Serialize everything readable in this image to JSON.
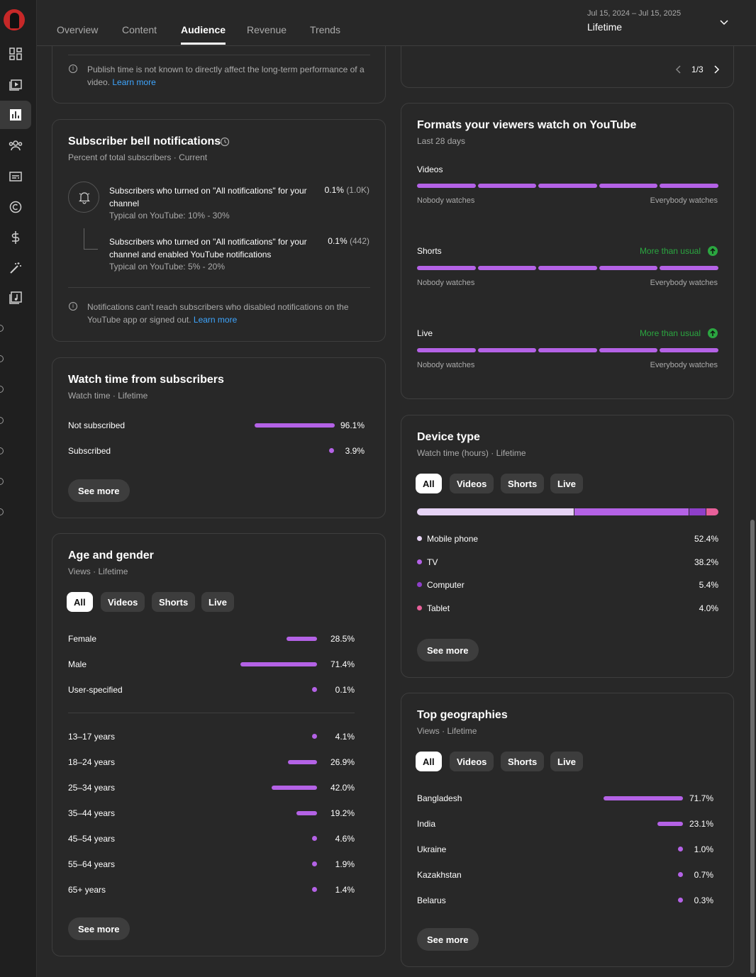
{
  "tabs": [
    "Overview",
    "Content",
    "Audience",
    "Revenue",
    "Trends"
  ],
  "date": {
    "range": "Jul 15, 2024 – Jul 15, 2025",
    "label": "Lifetime"
  },
  "publish_note": {
    "text": "Publish time is not known to directly affect the long-term performance of a video.",
    "link": "Learn more"
  },
  "pager": "1/3",
  "bell": {
    "title": "Subscriber bell notifications",
    "subtitle": "Percent of total subscribers · Current",
    "row1": {
      "text": "Subscribers who turned on \"All notifications\" for your channel",
      "typical": "Typical on YouTube: 10% - 30%",
      "value": "0.1%",
      "count": "(1.0K)"
    },
    "row2": {
      "text": "Subscribers who turned on \"All notifications\" for your channel and enabled YouTube notifications",
      "typical": "Typical on YouTube: 5% - 20%",
      "value": "0.1%",
      "count": "(442)"
    },
    "note": "Notifications can't reach subscribers who disabled notifications on the YouTube app or signed out.",
    "note_link": "Learn more"
  },
  "watch_subs": {
    "title": "Watch time from subscribers",
    "subtitle": "Watch time · Lifetime",
    "rows": [
      {
        "label": "Not subscribed",
        "value": "96.1%",
        "pct": 96.1
      },
      {
        "label": "Subscribed",
        "value": "3.9%",
        "pct": 3.9
      }
    ],
    "see_more": "See more"
  },
  "age_gender": {
    "title": "Age and gender",
    "subtitle": "Views · Lifetime",
    "chips": [
      "All",
      "Videos",
      "Shorts",
      "Live"
    ],
    "gender": [
      {
        "label": "Female",
        "value": "28.5%",
        "pct": 28.5
      },
      {
        "label": "Male",
        "value": "71.4%",
        "pct": 71.4
      },
      {
        "label": "User-specified",
        "value": "0.1%",
        "pct": 0.1
      }
    ],
    "ages": [
      {
        "label": "13–17 years",
        "value": "4.1%",
        "pct": 4.1
      },
      {
        "label": "18–24 years",
        "value": "26.9%",
        "pct": 26.9
      },
      {
        "label": "25–34 years",
        "value": "42.0%",
        "pct": 42.0
      },
      {
        "label": "35–44 years",
        "value": "19.2%",
        "pct": 19.2
      },
      {
        "label": "45–54 years",
        "value": "4.6%",
        "pct": 4.6
      },
      {
        "label": "55–64 years",
        "value": "1.9%",
        "pct": 1.9
      },
      {
        "label": "65+ years",
        "value": "1.4%",
        "pct": 1.4
      }
    ],
    "see_more": "See more"
  },
  "formats": {
    "title": "Formats your viewers watch on YouTube",
    "subtitle": "Last 28 days",
    "low": "Nobody watches",
    "high": "Everybody watches",
    "items": [
      {
        "name": "Videos",
        "badge": ""
      },
      {
        "name": "Shorts",
        "badge": "More than usual"
      },
      {
        "name": "Live",
        "badge": "More than usual"
      }
    ]
  },
  "device": {
    "title": "Device type",
    "subtitle": "Watch time (hours) · Lifetime",
    "chips": [
      "All",
      "Videos",
      "Shorts",
      "Live"
    ],
    "items": [
      {
        "label": "Mobile phone",
        "value": "52.4%",
        "pct": 52.4,
        "color": "#e6d3f5"
      },
      {
        "label": "TV",
        "value": "38.2%",
        "pct": 38.2,
        "color": "#b462e6"
      },
      {
        "label": "Computer",
        "value": "5.4%",
        "pct": 5.4,
        "color": "#8e3fc9"
      },
      {
        "label": "Tablet",
        "value": "4.0%",
        "pct": 4.0,
        "color": "#e8609a"
      }
    ],
    "see_more": "See more"
  },
  "geo": {
    "title": "Top geographies",
    "subtitle": "Views · Lifetime",
    "chips": [
      "All",
      "Videos",
      "Shorts",
      "Live"
    ],
    "rows": [
      {
        "label": "Bangladesh",
        "value": "71.7%",
        "pct": 71.7
      },
      {
        "label": "India",
        "value": "23.1%",
        "pct": 23.1
      },
      {
        "label": "Ukraine",
        "value": "1.0%",
        "pct": 1.0
      },
      {
        "label": "Kazakhstan",
        "value": "0.7%",
        "pct": 0.7
      },
      {
        "label": "Belarus",
        "value": "0.3%",
        "pct": 0.3
      }
    ],
    "see_more": "See more"
  }
}
